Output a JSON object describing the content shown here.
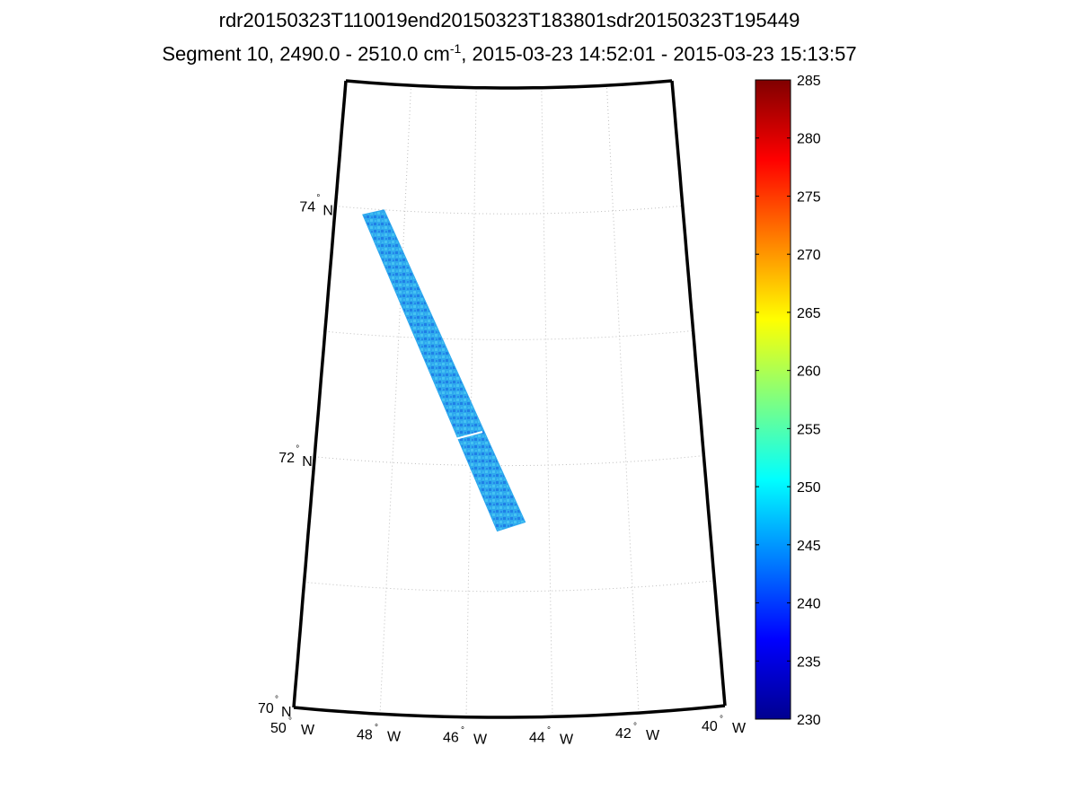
{
  "title": {
    "line1": "rdr20150323T110019end20150323T183801sdr20150323T195449",
    "line2_prefix": "Segment 10, 2490.0 - 2510.0 cm",
    "line2_sup": "-1",
    "line2_suffix": ", 2015-03-23 14:52:01 - 2015-03-23 15:13:57"
  },
  "chart_data": {
    "type": "heatmap",
    "description_projection": "map",
    "lat_range": [
      70,
      75
    ],
    "lon_range": [
      -50,
      -40
    ],
    "lat_labels": [
      {
        "value": 74,
        "deg": "74",
        "hemi": "N"
      },
      {
        "value": 72,
        "deg": "72",
        "hemi": "N"
      },
      {
        "value": 70,
        "deg": "70",
        "hemi": "N"
      }
    ],
    "lon_labels": [
      {
        "value": -50,
        "deg": "50",
        "hemi": "W"
      },
      {
        "value": -48,
        "deg": "48",
        "hemi": "W"
      },
      {
        "value": -46,
        "deg": "46",
        "hemi": "W"
      },
      {
        "value": -44,
        "deg": "44",
        "hemi": "W"
      },
      {
        "value": -42,
        "deg": "42",
        "hemi": "W"
      },
      {
        "value": -40,
        "deg": "40",
        "hemi": "W"
      }
    ],
    "swath": {
      "corners_latlon": [
        [
          73.95,
          -49.2
        ],
        [
          74.0,
          -48.6
        ],
        [
          71.55,
          -44.6
        ],
        [
          71.48,
          -45.3
        ]
      ],
      "typical_value": 246,
      "value_range": [
        240,
        250
      ]
    },
    "colorbar": {
      "min": 230,
      "max": 285,
      "ticks": [
        "285",
        "280",
        "275",
        "270",
        "265",
        "260",
        "255",
        "250",
        "245",
        "240",
        "235",
        "230"
      ],
      "colormap": "jet"
    },
    "grid": true
  }
}
